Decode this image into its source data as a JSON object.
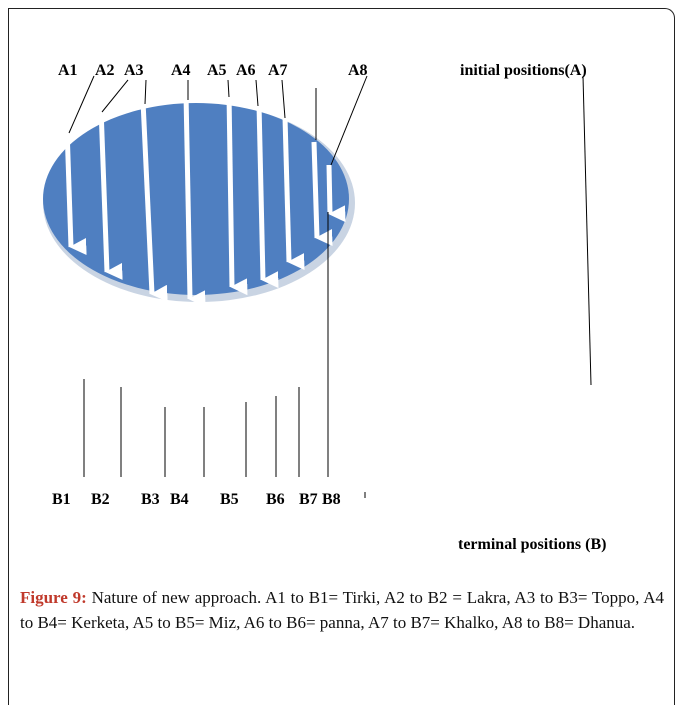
{
  "diagram": {
    "initial_labels": [
      "A1",
      "A2",
      "A3",
      "A4",
      "A5",
      "A6",
      "A7",
      "A8"
    ],
    "terminal_labels": [
      "B1",
      "B2",
      "B3",
      "B4",
      "B5",
      "B6",
      "B7",
      "B8"
    ],
    "initial_caption": "initial positions(A)",
    "terminal_caption": "terminal positions (B)",
    "ellipse_color": "#4f7fc1",
    "ellipse_rim_color": "#c9d4e3",
    "arrow_color": "#ffffff"
  },
  "caption": {
    "figure_label": "Figure 9:",
    "text": " Nature of new approach. A1 to B1= Tirki, A2 to B2 = Lakra, A3 to B3= Toppo, A4 to B4= Kerketa, A5 to B5= Miz, A6 to B6= panna, A7 to B7= Khalko, A8 to B8= Dhanua."
  }
}
